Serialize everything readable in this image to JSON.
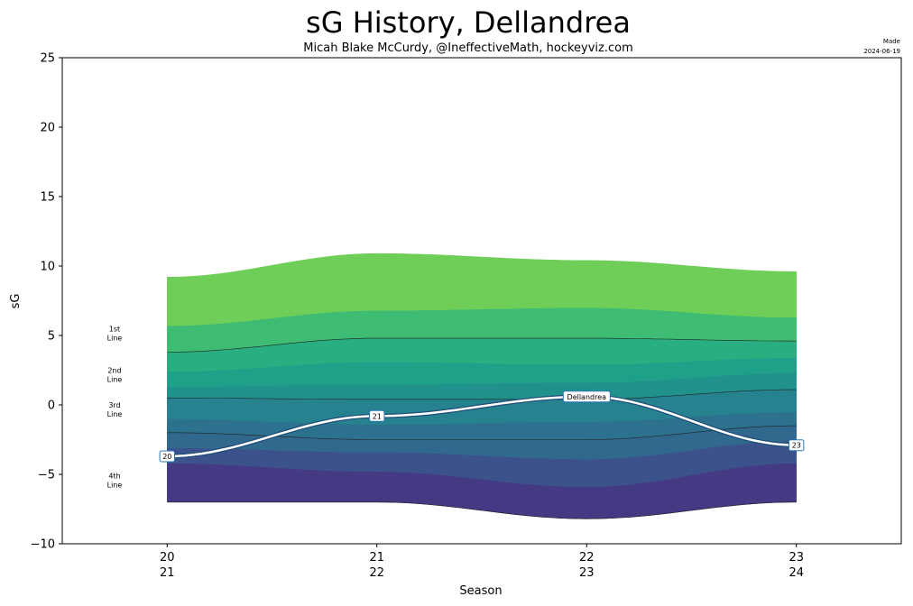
{
  "chart_data": {
    "type": "area",
    "title": "sG History, Dellandrea",
    "subtitle": "Micah Blake McCurdy, @IneffectiveMath, hockeyviz.com",
    "made_label": "Made",
    "made_date": "2024-06-19",
    "xlabel": "Season",
    "ylabel": "sG",
    "ylim": [
      -10,
      25
    ],
    "yticks": [
      -10,
      -5,
      0,
      5,
      10,
      15,
      20,
      25
    ],
    "x": [
      0,
      1,
      2,
      3
    ],
    "xlim": [
      -0.5,
      3.5
    ],
    "seasons": [
      {
        "top": "20",
        "bottom": "21"
      },
      {
        "top": "21",
        "bottom": "22"
      },
      {
        "top": "22",
        "bottom": "23"
      },
      {
        "top": "23",
        "bottom": "24"
      }
    ],
    "band_boundaries": [
      [
        -7.0,
        -7.0,
        -8.2,
        -7.0
      ],
      [
        -4.2,
        -4.8,
        -5.9,
        -4.2
      ],
      [
        -3.1,
        -3.4,
        -3.9,
        -2.6
      ],
      [
        -2.0,
        -2.5,
        -2.5,
        -1.5
      ],
      [
        -1.0,
        -1.4,
        -1.2,
        -0.5
      ],
      [
        0.5,
        0.4,
        0.4,
        1.1
      ],
      [
        1.3,
        1.5,
        1.6,
        2.3
      ],
      [
        2.4,
        3.1,
        2.9,
        3.4
      ],
      [
        3.8,
        4.8,
        4.8,
        4.6
      ],
      [
        5.7,
        6.8,
        7.0,
        6.3
      ],
      [
        9.2,
        10.9,
        10.4,
        9.6
      ]
    ],
    "band_colors": [
      "#443983",
      "#3b528b",
      "#31688e",
      "#2c728e",
      "#26828e",
      "#21918c",
      "#1fa088",
      "#28ae80",
      "#3fbc73",
      "#6ece58",
      "#cde11d"
    ],
    "reference_lines": [
      {
        "name": "1st Line",
        "values": [
          3.8,
          4.8,
          4.8,
          4.6
        ]
      },
      {
        "name": "2nd Line",
        "values": [
          0.5,
          0.4,
          0.4,
          1.1
        ]
      },
      {
        "name": "3rd Line",
        "values": [
          -2.0,
          -2.5,
          -2.5,
          -1.5
        ]
      },
      {
        "name": "4th Line",
        "values": [
          -7.0,
          -7.0,
          -8.2,
          -7.0
        ]
      }
    ],
    "line_labels": [
      {
        "lines": [
          "1st",
          "Line"
        ],
        "y": 5.3
      },
      {
        "lines": [
          "2nd",
          "Line"
        ],
        "y": 2.3
      },
      {
        "lines": [
          "3rd",
          "Line"
        ],
        "y": -0.2
      },
      {
        "lines": [
          "4th",
          "Line"
        ],
        "y": -5.3
      }
    ],
    "player": {
      "name": "Dellandrea",
      "values": [
        -3.7,
        -0.8,
        0.6,
        -2.9
      ],
      "point_labels": [
        "20",
        "21",
        "",
        "23"
      ],
      "name_label_index": 2
    },
    "colors": {
      "player_line": "#ffffff",
      "player_outline": "#1f4e79",
      "label_border": "#2878b5"
    }
  }
}
